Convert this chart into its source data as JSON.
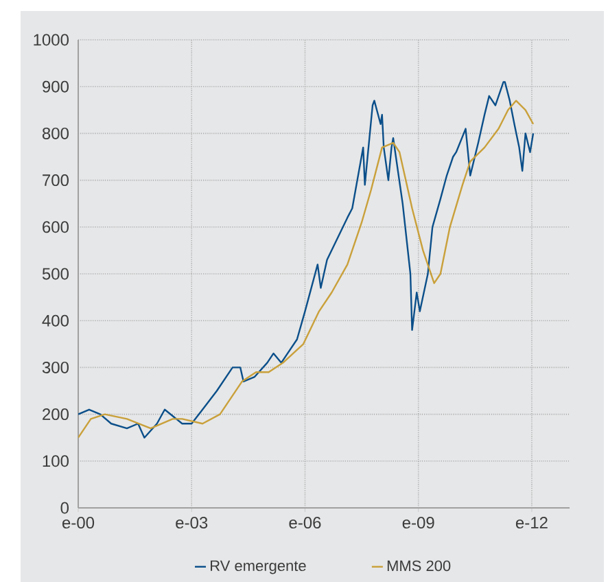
{
  "chart_data": {
    "type": "line",
    "xlim": [
      "2000-01",
      "2013-01"
    ],
    "ylim": [
      0,
      1000
    ],
    "xticks": [
      {
        "value": "2000-01",
        "label": "e-00"
      },
      {
        "value": "2003-01",
        "label": "e-03"
      },
      {
        "value": "2006-01",
        "label": "e-06"
      },
      {
        "value": "2009-01",
        "label": "e-09"
      },
      {
        "value": "2012-01",
        "label": "e-12"
      }
    ],
    "yticks": [
      0,
      100,
      200,
      300,
      400,
      500,
      600,
      700,
      800,
      900,
      1000
    ],
    "grid": true,
    "legend": "bottom",
    "marker": "none",
    "line_style": "solid",
    "series": [
      {
        "name": "RV emergente",
        "color": "#0b4f8a",
        "x": [
          "2000-01-01",
          "2000-04-15",
          "2000-08-01",
          "2000-11-15",
          "2001-04-15",
          "2001-08-01",
          "2001-10-01",
          "2002-02-01",
          "2002-04-15",
          "2002-10-01",
          "2003-01-01",
          "2003-04-15",
          "2003-09-01",
          "2004-02-01",
          "2004-04-15",
          "2004-05-15",
          "2004-09-01",
          "2005-01-01",
          "2005-03-01",
          "2005-05-15",
          "2005-10-15",
          "2006-01-01",
          "2006-05-01",
          "2006-06-01",
          "2006-08-01",
          "2007-02-15",
          "2007-04-01",
          "2007-07-15",
          "2007-08-01",
          "2007-10-15",
          "2007-11-01",
          "2008-01-01",
          "2008-01-15",
          "2008-02-01",
          "2008-03-15",
          "2008-04-15",
          "2008-05-01",
          "2008-08-01",
          "2008-10-15",
          "2008-11-01",
          "2008-12-15",
          "2009-01-15",
          "2009-04-01",
          "2009-05-15",
          "2009-08-01",
          "2009-10-01",
          "2009-12-01",
          "2010-01-01",
          "2010-04-01",
          "2010-05-15",
          "2010-08-01",
          "2010-10-01",
          "2010-11-15",
          "2011-01-15",
          "2011-04-01",
          "2011-04-15",
          "2011-06-01",
          "2011-07-15",
          "2011-09-01",
          "2011-10-01",
          "2011-11-01",
          "2011-12-15",
          "2012-01-15"
        ],
        "values": [
          200,
          210,
          200,
          180,
          170,
          180,
          150,
          180,
          210,
          180,
          180,
          210,
          250,
          300,
          300,
          270,
          280,
          310,
          330,
          310,
          360,
          420,
          520,
          470,
          530,
          620,
          640,
          770,
          690,
          860,
          870,
          820,
          840,
          770,
          700,
          770,
          790,
          650,
          500,
          380,
          460,
          420,
          500,
          600,
          660,
          710,
          750,
          760,
          810,
          710,
          780,
          840,
          880,
          860,
          910,
          910,
          870,
          820,
          770,
          720,
          800,
          760,
          800
        ]
      },
      {
        "name": "MMS 200",
        "color": "#c9a03a",
        "x": [
          "2000-01-01",
          "2000-05-01",
          "2000-09-15",
          "2001-04-15",
          "2001-12-01",
          "2002-07-01",
          "2002-10-01",
          "2003-04-15",
          "2003-10-01",
          "2004-05-01",
          "2004-09-15",
          "2005-01-15",
          "2005-06-01",
          "2005-12-15",
          "2006-05-15",
          "2006-09-15",
          "2007-02-15",
          "2007-07-01",
          "2007-10-01",
          "2008-01-15",
          "2008-05-01",
          "2008-07-01",
          "2008-11-01",
          "2009-02-15",
          "2009-06-01",
          "2009-08-01",
          "2009-11-01",
          "2010-03-01",
          "2010-05-15",
          "2010-10-01",
          "2011-02-15",
          "2011-05-15",
          "2011-08-01",
          "2011-11-01",
          "2012-01-15"
        ],
        "values": [
          150,
          190,
          200,
          190,
          170,
          190,
          190,
          180,
          200,
          270,
          290,
          290,
          310,
          350,
          420,
          460,
          520,
          610,
          680,
          770,
          780,
          760,
          640,
          550,
          480,
          500,
          600,
          690,
          740,
          770,
          810,
          850,
          870,
          850,
          820
        ]
      }
    ]
  }
}
